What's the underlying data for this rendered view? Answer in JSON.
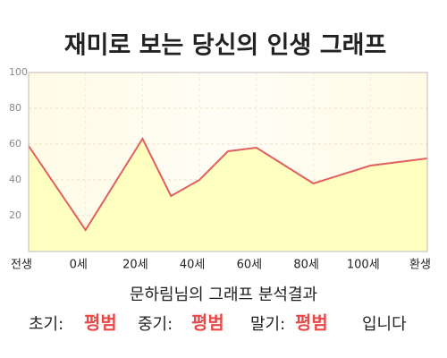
{
  "chart_data": {
    "type": "line",
    "title": "재미로 보는 당신의 인생 그래프",
    "x": [
      -20,
      0,
      20,
      30,
      40,
      50,
      60,
      80,
      100,
      120
    ],
    "series": [
      {
        "color": "#e06060",
        "fill": "#ffffc0",
        "values": [
          59,
          12,
          63,
          31,
          40,
          56,
          58,
          38,
          48,
          52
        ]
      }
    ],
    "xlim": [
      -20,
      120
    ],
    "xticks": [
      {
        "value": -20,
        "label": "전생"
      },
      {
        "value": 0,
        "label": "0세"
      },
      {
        "value": 20,
        "label": "20세"
      },
      {
        "value": 40,
        "label": "40세"
      },
      {
        "value": 60,
        "label": "60세"
      },
      {
        "value": 80,
        "label": "80세"
      },
      {
        "value": 100,
        "label": "100세"
      },
      {
        "value": 120,
        "label": "환생"
      }
    ],
    "ylim": [
      0,
      100
    ],
    "yticks": [
      20,
      40,
      60,
      80,
      100
    ],
    "grid": true
  },
  "analysis": {
    "heading": "문하림님의 그래프 분석결과",
    "early_label": "초기:",
    "early": "평범",
    "middle_label": "중기:",
    "middle": "평범",
    "late_label": "말기:",
    "late": "평범",
    "ending": "입니다"
  }
}
